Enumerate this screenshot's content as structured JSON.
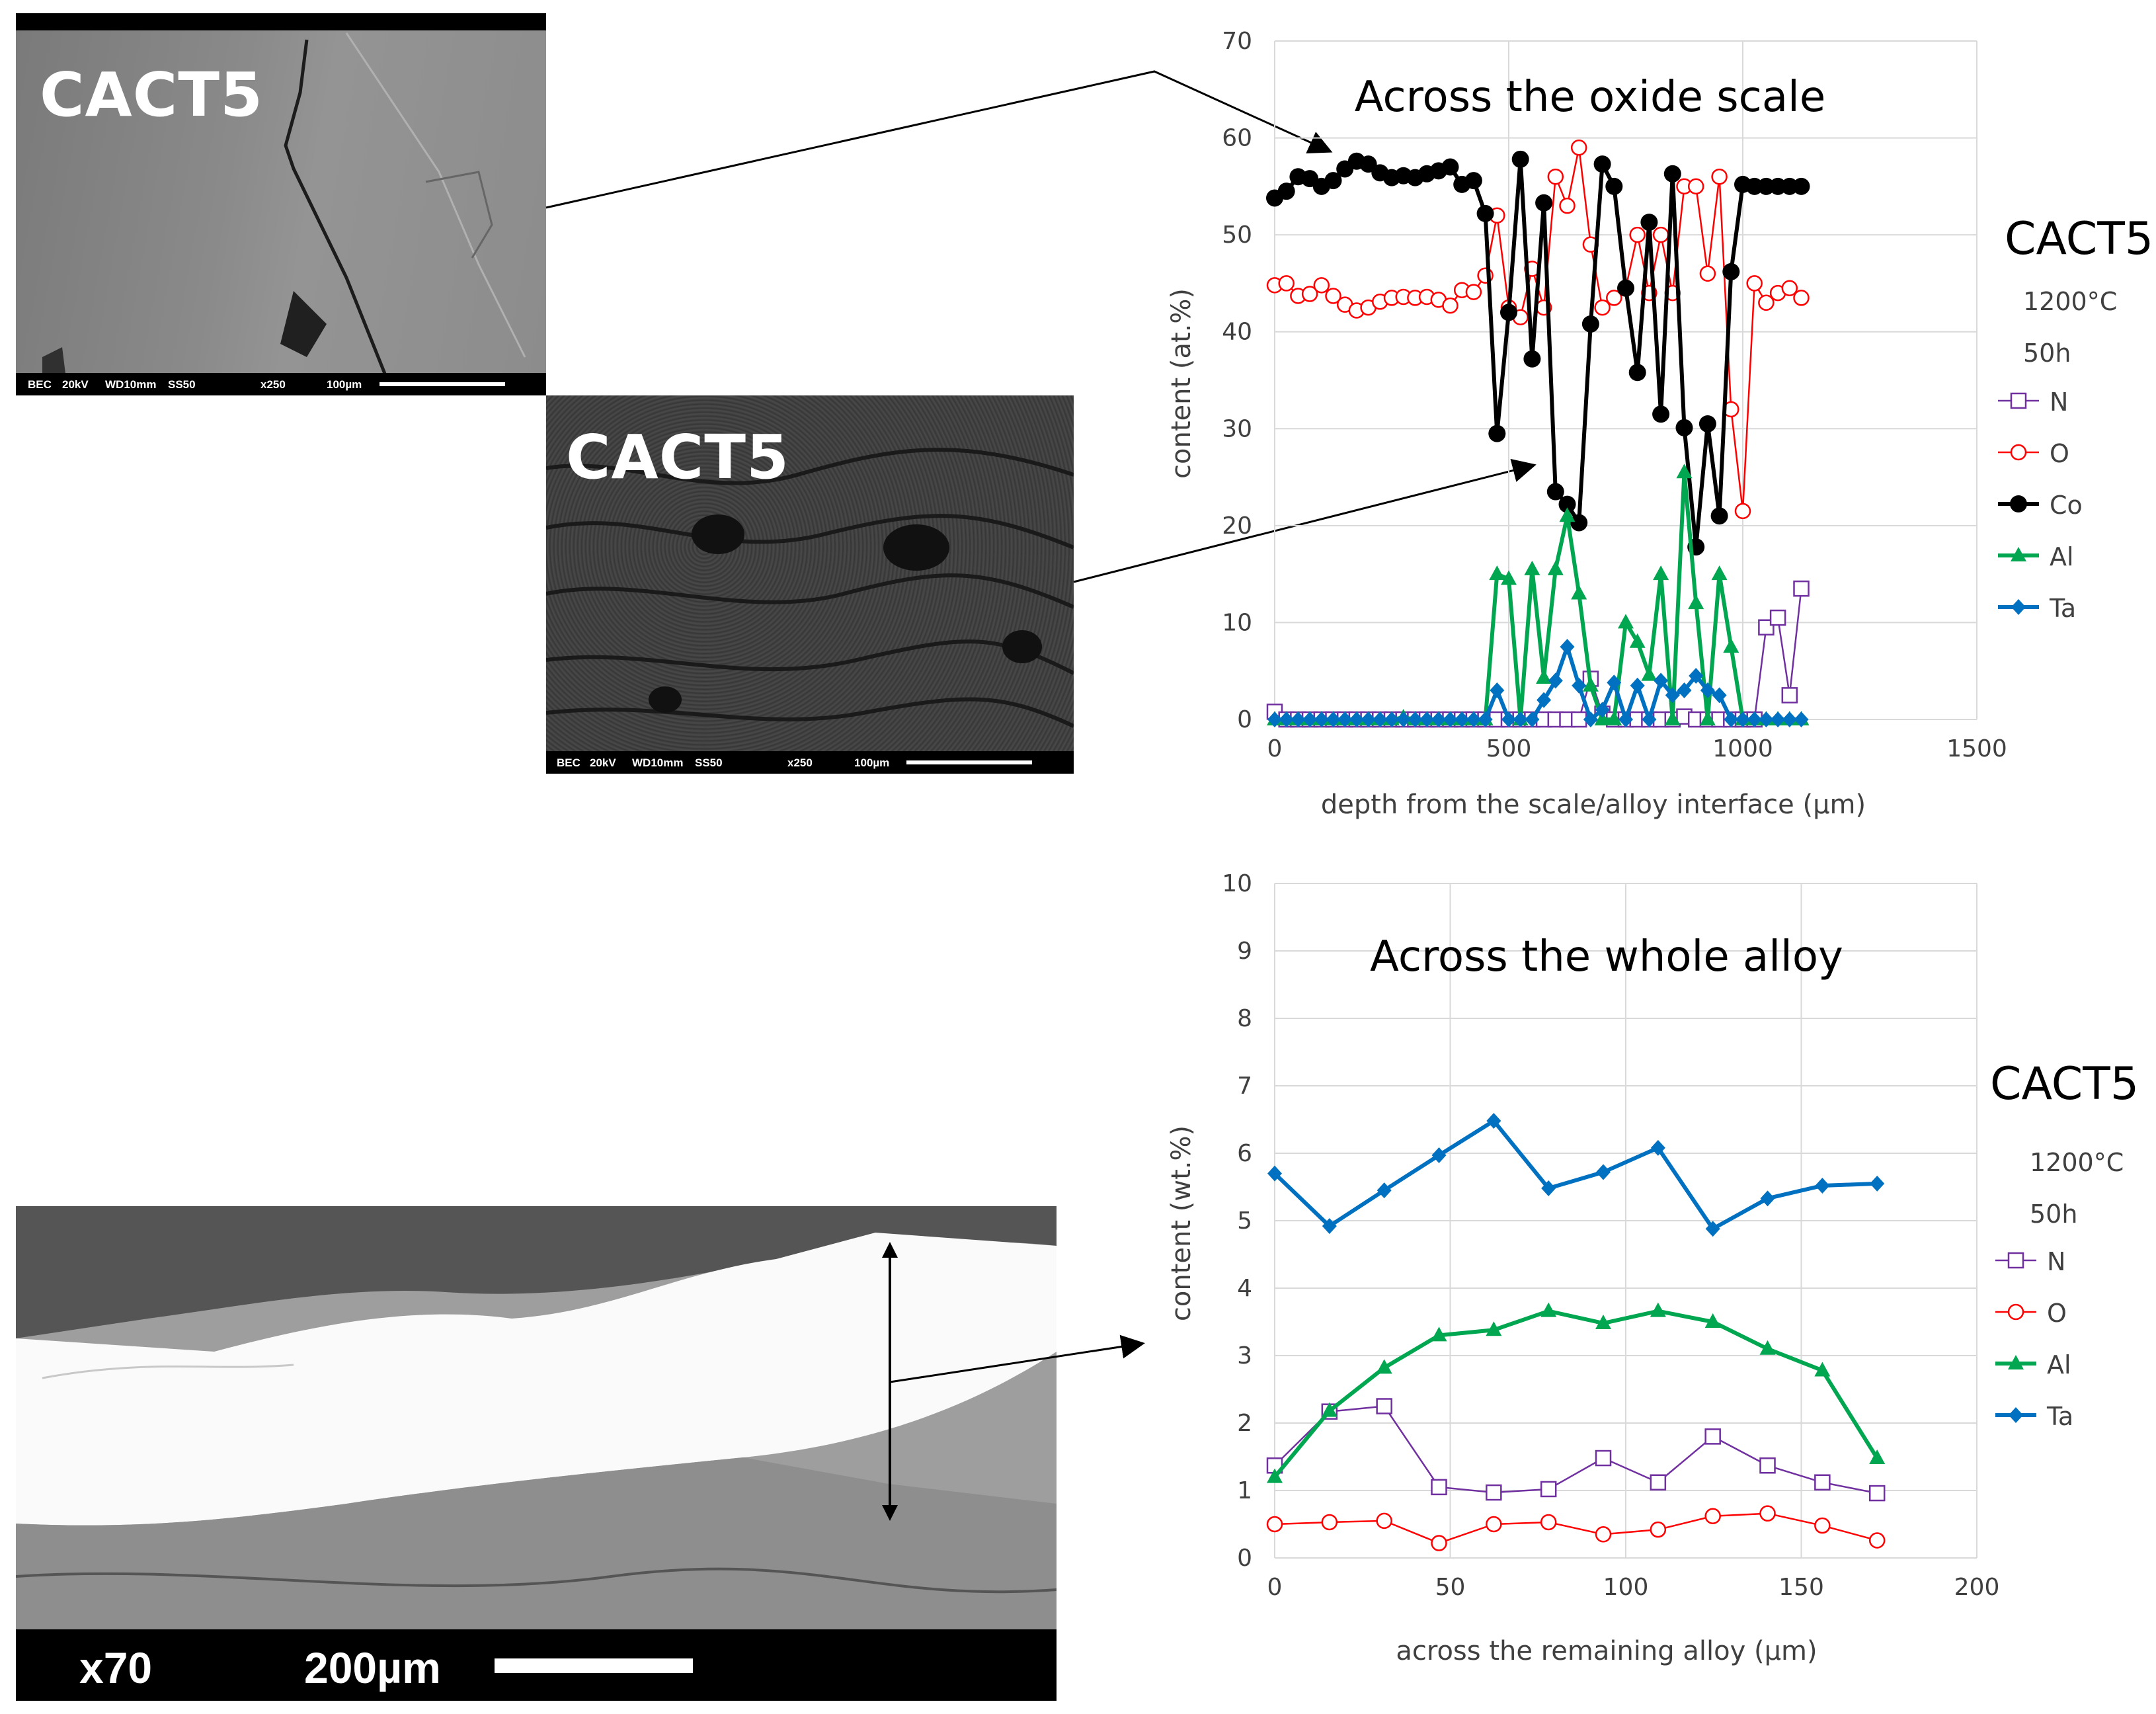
{
  "micrographs": [
    {
      "label": "CACT5",
      "info": [
        "BEC",
        "20kV",
        "WD10mm",
        "SS50",
        "x250",
        "100µm"
      ]
    },
    {
      "label": "CACT5",
      "info": [
        "BEC",
        "20kV",
        "WD10mm",
        "SS50",
        "x250",
        "100µm"
      ]
    },
    {
      "mag": "x70",
      "scale": "200µm"
    }
  ],
  "side_panels": [
    {
      "sample": "CACT5",
      "temp": "1200°C",
      "time": "50h",
      "legend": [
        "N",
        "O",
        "Co",
        "Al",
        "Ta"
      ]
    },
    {
      "sample": "CACT5",
      "temp": "1200°C",
      "time": "50h",
      "legend": [
        "N",
        "O",
        "Al",
        "Ta"
      ]
    }
  ],
  "colors": {
    "N": "#7030a0",
    "O": "#ff0000",
    "Co": "#000000",
    "Al": "#00a650",
    "Ta": "#0070c0",
    "grid": "#d9d9d9"
  },
  "chart_data": [
    {
      "type": "line",
      "title": "Across the oxide scale",
      "xlabel": "depth from the scale/alloy interface (µm)",
      "ylabel": "content (at.%)",
      "xlim": [
        0,
        1500
      ],
      "ylim": [
        0,
        70
      ],
      "xticks": [
        0,
        500,
        1000,
        1500
      ],
      "yticks": [
        0,
        10,
        20,
        30,
        40,
        50,
        60,
        70
      ],
      "legend_position": "right",
      "series": [
        {
          "name": "N",
          "marker": "open-square",
          "x": [
            0,
            25,
            50,
            75,
            100,
            125,
            150,
            175,
            200,
            225,
            250,
            275,
            300,
            325,
            350,
            375,
            400,
            425,
            450,
            475,
            500,
            525,
            550,
            575,
            600,
            625,
            650,
            675,
            700,
            725,
            750,
            775,
            800,
            825,
            850,
            875,
            900,
            925,
            950,
            975,
            1000,
            1025,
            1050,
            1075,
            1100,
            1125
          ],
          "y": [
            0.8,
            0,
            0,
            0,
            0,
            0,
            0,
            0,
            0,
            0,
            0,
            0,
            0,
            0,
            0,
            0,
            0,
            0,
            0,
            0,
            0,
            0,
            0,
            0,
            0,
            0,
            0,
            4.2,
            0.6,
            0,
            0,
            0,
            0,
            0,
            0,
            0.3,
            0,
            0,
            0,
            0,
            0,
            0,
            9.5,
            10.5,
            2.5,
            13.5
          ]
        },
        {
          "name": "O",
          "marker": "open-circle",
          "x": [
            0,
            25,
            50,
            75,
            100,
            125,
            150,
            175,
            200,
            225,
            250,
            275,
            300,
            325,
            350,
            375,
            400,
            425,
            450,
            475,
            500,
            525,
            550,
            575,
            600,
            625,
            650,
            675,
            700,
            725,
            750,
            775,
            800,
            825,
            850,
            875,
            900,
            925,
            950,
            975,
            1000,
            1025,
            1050,
            1075,
            1100,
            1125
          ],
          "y": [
            44.8,
            45.0,
            43.7,
            43.9,
            44.8,
            43.7,
            42.8,
            42.2,
            42.5,
            43.1,
            43.5,
            43.6,
            43.5,
            43.6,
            43.3,
            42.7,
            44.3,
            44.1,
            45.8,
            52.0,
            42.5,
            41.5,
            46.5,
            42.5,
            56.0,
            53.0,
            59.0,
            49.0,
            42.5,
            43.5,
            44.5,
            50.0,
            44.0,
            50.0,
            44.0,
            55.0,
            55.0,
            46.0,
            56.0,
            32.0,
            21.5,
            45.0,
            43.0,
            44.0,
            44.5,
            43.5
          ]
        },
        {
          "name": "Co",
          "marker": "filled-circle",
          "x": [
            0,
            25,
            50,
            75,
            100,
            125,
            150,
            175,
            200,
            225,
            250,
            275,
            300,
            325,
            350,
            375,
            400,
            425,
            450,
            475,
            500,
            525,
            550,
            575,
            600,
            625,
            650,
            675,
            700,
            725,
            750,
            775,
            800,
            825,
            850,
            875,
            900,
            925,
            950,
            975,
            1000,
            1025,
            1050,
            1075,
            1100,
            1125
          ],
          "y": [
            53.8,
            54.5,
            56.0,
            55.8,
            55.0,
            55.6,
            56.8,
            57.6,
            57.3,
            56.4,
            55.9,
            56.1,
            55.9,
            56.3,
            56.6,
            57.0,
            55.2,
            55.6,
            52.2,
            29.5,
            42.0,
            57.8,
            37.2,
            53.3,
            23.5,
            22.2,
            20.3,
            40.8,
            57.3,
            55.0,
            44.5,
            35.8,
            51.3,
            31.5,
            56.3,
            30.1,
            17.8,
            30.5,
            21.0,
            46.2,
            55.2,
            55.0,
            55.0,
            55.0,
            55.0,
            55.0
          ]
        },
        {
          "name": "Al",
          "marker": "filled-triangle",
          "x": [
            0,
            25,
            50,
            75,
            100,
            125,
            150,
            175,
            200,
            225,
            250,
            275,
            300,
            325,
            350,
            375,
            400,
            425,
            450,
            475,
            500,
            525,
            550,
            575,
            600,
            625,
            650,
            675,
            700,
            725,
            750,
            775,
            800,
            825,
            850,
            875,
            900,
            925,
            950,
            975,
            1000,
            1025,
            1050,
            1075,
            1100,
            1125
          ],
          "y": [
            0,
            0,
            0,
            0,
            0,
            0,
            0,
            0,
            0,
            0,
            0,
            0.2,
            0,
            0,
            0,
            0,
            0,
            0,
            0,
            15.0,
            14.5,
            0,
            15.5,
            4.3,
            15.5,
            21.0,
            13.0,
            3.5,
            0,
            0,
            10.0,
            8.0,
            4.6,
            15.0,
            0,
            25.5,
            12.0,
            0,
            15.0,
            7.5,
            0,
            0,
            0,
            0,
            0,
            0
          ]
        },
        {
          "name": "Ta",
          "marker": "filled-diamond",
          "x": [
            0,
            25,
            50,
            75,
            100,
            125,
            150,
            175,
            200,
            225,
            250,
            275,
            300,
            325,
            350,
            375,
            400,
            425,
            450,
            475,
            500,
            525,
            550,
            575,
            600,
            625,
            650,
            675,
            700,
            725,
            750,
            775,
            800,
            825,
            850,
            875,
            900,
            925,
            950,
            975,
            1000,
            1025,
            1050,
            1075,
            1100,
            1125
          ],
          "y": [
            0,
            0,
            0,
            0,
            0,
            0,
            0,
            0,
            0,
            0,
            0,
            0,
            0,
            0,
            0,
            0,
            0,
            0,
            0,
            3.0,
            0,
            0,
            0,
            2.0,
            4.0,
            7.5,
            3.5,
            0,
            1.0,
            3.8,
            0,
            3.5,
            0,
            4.0,
            2.5,
            3.0,
            4.5,
            3.0,
            2.5,
            0,
            0,
            0,
            0,
            0,
            0,
            0
          ]
        }
      ]
    },
    {
      "type": "line",
      "title": "Across the whole alloy",
      "xlabel": "across the remaining alloy (µm)",
      "ylabel": "content (wt.%)",
      "xlim": [
        0,
        200
      ],
      "ylim": [
        0,
        10
      ],
      "xticks": [
        0,
        50,
        100,
        150,
        200
      ],
      "yticks": [
        0,
        1,
        2,
        3,
        4,
        5,
        6,
        7,
        8,
        9,
        10
      ],
      "legend_position": "right",
      "series": [
        {
          "name": "N",
          "marker": "open-square",
          "x": [
            0,
            15.6,
            31.2,
            46.8,
            62.4,
            78,
            93.6,
            109.2,
            124.8,
            140.4,
            156,
            171.6
          ],
          "y": [
            1.37,
            2.17,
            2.25,
            1.05,
            0.97,
            1.02,
            1.48,
            1.12,
            1.8,
            1.37,
            1.12,
            0.96
          ]
        },
        {
          "name": "O",
          "marker": "open-circle",
          "x": [
            0,
            15.6,
            31.2,
            46.8,
            62.4,
            78,
            93.6,
            109.2,
            124.8,
            140.4,
            156,
            171.6
          ],
          "y": [
            0.5,
            0.53,
            0.55,
            0.22,
            0.5,
            0.53,
            0.35,
            0.42,
            0.62,
            0.66,
            0.48,
            0.26
          ]
        },
        {
          "name": "Al",
          "marker": "filled-triangle",
          "x": [
            0,
            15.6,
            31.2,
            46.8,
            62.4,
            78,
            93.6,
            109.2,
            124.8,
            140.4,
            156,
            171.6
          ],
          "y": [
            1.2,
            2.18,
            2.82,
            3.3,
            3.38,
            3.66,
            3.48,
            3.66,
            3.5,
            3.1,
            2.78,
            1.48
          ]
        },
        {
          "name": "Ta",
          "marker": "filled-diamond",
          "x": [
            0,
            15.6,
            31.2,
            46.8,
            62.4,
            78,
            93.6,
            109.2,
            124.8,
            140.4,
            156,
            171.6
          ],
          "y": [
            5.7,
            4.92,
            5.45,
            5.97,
            6.48,
            5.48,
            5.72,
            6.08,
            4.88,
            5.33,
            5.52,
            5.55
          ]
        }
      ]
    }
  ]
}
